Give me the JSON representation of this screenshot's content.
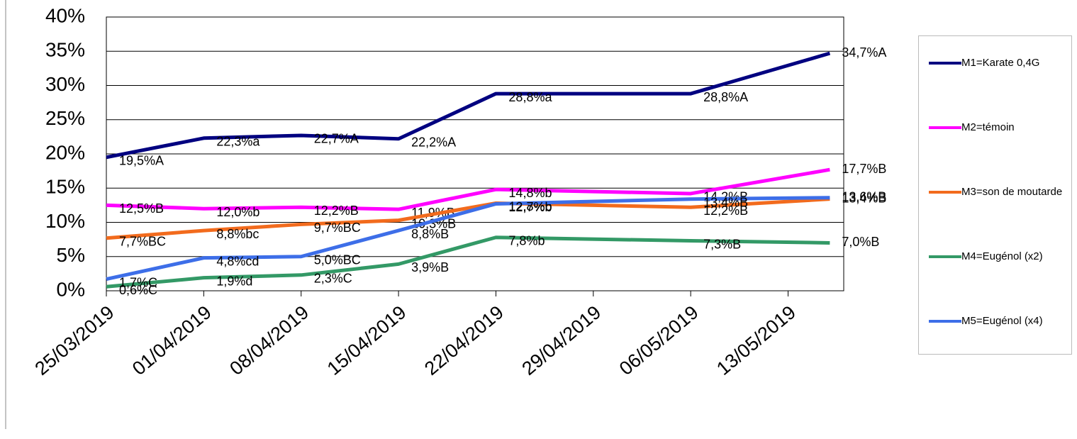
{
  "chart_data": {
    "type": "line",
    "x": [
      "2019-03-25",
      "2019-04-01",
      "2019-04-08",
      "2019-04-15",
      "2019-04-22",
      "2019-05-06",
      "2019-05-16"
    ],
    "xlim": [
      "2019-03-25",
      "2019-05-17"
    ],
    "xticks": [
      {
        "value": "2019-03-25",
        "label": "25/03/2019"
      },
      {
        "value": "2019-04-01",
        "label": "01/04/2019"
      },
      {
        "value": "2019-04-08",
        "label": "08/04/2019"
      },
      {
        "value": "2019-04-15",
        "label": "15/04/2019"
      },
      {
        "value": "2019-04-22",
        "label": "22/04/2019"
      },
      {
        "value": "2019-04-29",
        "label": "29/04/2019"
      },
      {
        "value": "2019-05-06",
        "label": "06/05/2019"
      },
      {
        "value": "2019-05-13",
        "label": "13/05/2019"
      }
    ],
    "ylim": [
      0,
      40
    ],
    "yticks": [
      {
        "value": 0,
        "label": "0%"
      },
      {
        "value": 5,
        "label": "5%"
      },
      {
        "value": 10,
        "label": "10%"
      },
      {
        "value": 15,
        "label": "15%"
      },
      {
        "value": 20,
        "label": "20%"
      },
      {
        "value": 25,
        "label": "25%"
      },
      {
        "value": 30,
        "label": "30%"
      },
      {
        "value": 35,
        "label": "35%"
      },
      {
        "value": 40,
        "label": "40%"
      }
    ],
    "grid": true,
    "legend": "right",
    "series": [
      {
        "name": "M1=Karate 0,4G",
        "color": "#000080",
        "values": [
          19.5,
          22.3,
          22.7,
          22.2,
          28.8,
          28.8,
          34.7
        ],
        "value_labels": [
          "19,5%A",
          "22,3%a",
          "22,7%A",
          "22,2%A",
          "28,8%a",
          "28,8%A",
          "34,7%A"
        ]
      },
      {
        "name": "M2=témoin",
        "color": "#ff00ff",
        "values": [
          12.5,
          12.0,
          12.2,
          11.9,
          14.8,
          14.2,
          17.7
        ],
        "value_labels": [
          "12,5%B",
          "12,0%b",
          "12,2%B",
          "11,9%B",
          "14,8%b",
          "14,2%B",
          "17,7%B"
        ]
      },
      {
        "name": "M3=son de moutarde",
        "color": "#f26b1d",
        "values": [
          7.7,
          8.8,
          9.7,
          10.3,
          12.8,
          12.2,
          13.4
        ],
        "value_labels": [
          "7,7%BC",
          "8,8%bc",
          "9,7%BC",
          "10,3%B",
          "12,8%b",
          "12,2%B",
          "13,4%B"
        ]
      },
      {
        "name": "M4=Eugénol (x2)",
        "color": "#339966",
        "values": [
          0.6,
          1.9,
          2.3,
          3.9,
          7.8,
          7.3,
          7.0
        ],
        "value_labels": [
          "0,6%C",
          "1,9%d",
          "2,3%C",
          "3,9%B",
          "7,8%b",
          "7,3%B",
          "7,0%B"
        ]
      },
      {
        "name": "M5=Eugénol (x4)",
        "color": "#3d6ee8",
        "values": [
          1.7,
          4.8,
          5.0,
          8.8,
          12.7,
          13.4,
          13.6
        ],
        "value_labels": [
          "1,7%C",
          "4,8%cd",
          "5,0%BC",
          "8,8%B",
          "12,7%b",
          "13,4%B",
          "13,6%B"
        ]
      }
    ]
  }
}
